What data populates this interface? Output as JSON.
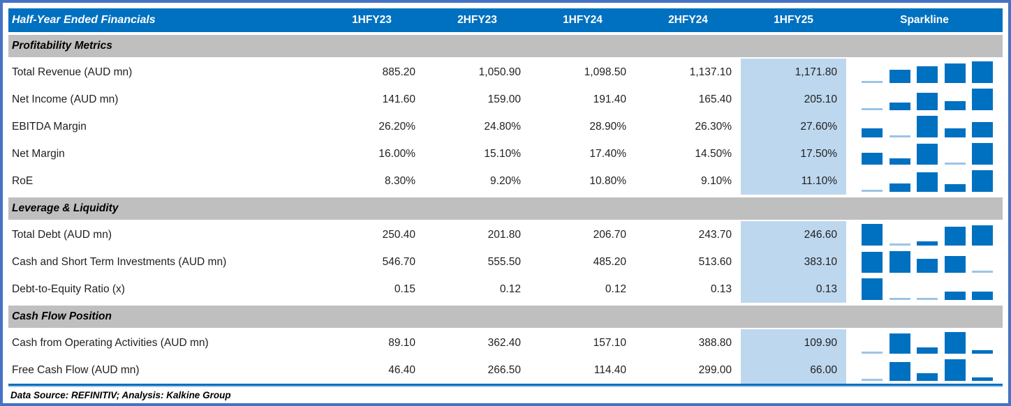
{
  "table": {
    "title": "Half-Year Ended Financials",
    "period_columns": [
      "1HFY23",
      "2HFY23",
      "1HFY24",
      "2HFY24",
      "1HFY25"
    ],
    "sparkline_column": "Sparkline",
    "highlighted_column": "1HFY25",
    "sections": [
      {
        "title": "Profitability Metrics",
        "rows": [
          {
            "label": "Total Revenue (AUD mn)",
            "values": [
              "885.20",
              "1,050.90",
              "1,098.50",
              "1,137.10",
              "1,171.80"
            ],
            "numeric": [
              885.2,
              1050.9,
              1098.5,
              1137.1,
              1171.8
            ]
          },
          {
            "label": "Net Income (AUD mn)",
            "values": [
              "141.60",
              "159.00",
              "191.40",
              "165.40",
              "205.10"
            ],
            "numeric": [
              141.6,
              159.0,
              191.4,
              165.4,
              205.1
            ]
          },
          {
            "label": "EBITDA Margin",
            "values": [
              "26.20%",
              "24.80%",
              "28.90%",
              "26.30%",
              "27.60%"
            ],
            "numeric": [
              26.2,
              24.8,
              28.9,
              26.3,
              27.6
            ]
          },
          {
            "label": "Net Margin",
            "values": [
              "16.00%",
              "15.10%",
              "17.40%",
              "14.50%",
              "17.50%"
            ],
            "numeric": [
              16.0,
              15.1,
              17.4,
              14.5,
              17.5
            ]
          },
          {
            "label": "RoE",
            "values": [
              "8.30%",
              "9.20%",
              "10.80%",
              "9.10%",
              "11.10%"
            ],
            "numeric": [
              8.3,
              9.2,
              10.8,
              9.1,
              11.1
            ]
          }
        ]
      },
      {
        "title": "Leverage & Liquidity",
        "rows": [
          {
            "label": "Total Debt (AUD mn)",
            "values": [
              "250.40",
              "201.80",
              "206.70",
              "243.70",
              "246.60"
            ],
            "numeric": [
              250.4,
              201.8,
              206.7,
              243.7,
              246.6
            ]
          },
          {
            "label": "Cash and Short Term Investments (AUD mn)",
            "values": [
              "546.70",
              "555.50",
              "485.20",
              "513.60",
              "383.10"
            ],
            "numeric": [
              546.7,
              555.5,
              485.2,
              513.6,
              383.1
            ]
          },
          {
            "label": "Debt-to-Equity Ratio (x)",
            "values": [
              "0.15",
              "0.12",
              "0.12",
              "0.13",
              "0.13"
            ],
            "numeric": [
              0.15,
              0.12,
              0.12,
              0.13,
              0.13
            ]
          }
        ]
      },
      {
        "title": "Cash Flow Position",
        "rows": [
          {
            "label": "Cash from Operating Activities (AUD mn)",
            "values": [
              "89.10",
              "362.40",
              "157.10",
              "388.80",
              "109.90"
            ],
            "numeric": [
              89.1,
              362.4,
              157.1,
              388.8,
              109.9
            ]
          },
          {
            "label": "Free Cash Flow (AUD mn)",
            "values": [
              "46.40",
              "266.50",
              "114.40",
              "299.00",
              "66.00"
            ],
            "numeric": [
              46.4,
              266.5,
              114.4,
              299.0,
              66.0
            ]
          }
        ]
      }
    ]
  },
  "footer": {
    "text": "Data Source: REFINITIV; Analysis: Kalkine Group"
  },
  "colors": {
    "header_bg": "#0070C0",
    "header_text": "#FFFFFF",
    "section_bg": "#BFBFBF",
    "highlight_bg": "#BDD7EE",
    "sparkline_bar": "#0070C0",
    "sparkline_min_line": "#9DC3E6",
    "frame_border": "#4472C4",
    "text": "#1F1F1F"
  },
  "chart_data": {
    "type": "table",
    "title": "Half-Year Ended Financials",
    "categories": [
      "1HFY23",
      "2HFY23",
      "1HFY24",
      "2HFY24",
      "1HFY25"
    ],
    "highlighted_category": "1HFY25",
    "series": [
      {
        "name": "Total Revenue (AUD mn)",
        "section": "Profitability Metrics",
        "unit": "AUD mn",
        "values": [
          885.2,
          1050.9,
          1098.5,
          1137.1,
          1171.8
        ]
      },
      {
        "name": "Net Income (AUD mn)",
        "section": "Profitability Metrics",
        "unit": "AUD mn",
        "values": [
          141.6,
          159.0,
          191.4,
          165.4,
          205.1
        ]
      },
      {
        "name": "EBITDA Margin",
        "section": "Profitability Metrics",
        "unit": "%",
        "values": [
          26.2,
          24.8,
          28.9,
          26.3,
          27.6
        ]
      },
      {
        "name": "Net Margin",
        "section": "Profitability Metrics",
        "unit": "%",
        "values": [
          16.0,
          15.1,
          17.4,
          14.5,
          17.5
        ]
      },
      {
        "name": "RoE",
        "section": "Profitability Metrics",
        "unit": "%",
        "values": [
          8.3,
          9.2,
          10.8,
          9.1,
          11.1
        ]
      },
      {
        "name": "Total Debt (AUD mn)",
        "section": "Leverage & Liquidity",
        "unit": "AUD mn",
        "values": [
          250.4,
          201.8,
          206.7,
          243.7,
          246.6
        ]
      },
      {
        "name": "Cash and Short Term Investments (AUD mn)",
        "section": "Leverage & Liquidity",
        "unit": "AUD mn",
        "values": [
          546.7,
          555.5,
          485.2,
          513.6,
          383.1
        ]
      },
      {
        "name": "Debt-to-Equity Ratio (x)",
        "section": "Leverage & Liquidity",
        "unit": "x",
        "values": [
          0.15,
          0.12,
          0.12,
          0.13,
          0.13
        ]
      },
      {
        "name": "Cash from Operating Activities (AUD mn)",
        "section": "Cash Flow Position",
        "unit": "AUD mn",
        "values": [
          89.1,
          362.4,
          157.1,
          388.8,
          109.9
        ]
      },
      {
        "name": "Free Cash Flow (AUD mn)",
        "section": "Cash Flow Position",
        "unit": "AUD mn",
        "values": [
          46.4,
          266.5,
          114.4,
          299.0,
          66.0
        ]
      }
    ],
    "sparkline": {
      "type": "bar",
      "scaling": "per-row min-max",
      "note": "row minimum rendered as thin light-blue axis line"
    },
    "legend_position": "none",
    "source_note": "Data Source: REFINITIV; Analysis: Kalkine Group"
  }
}
